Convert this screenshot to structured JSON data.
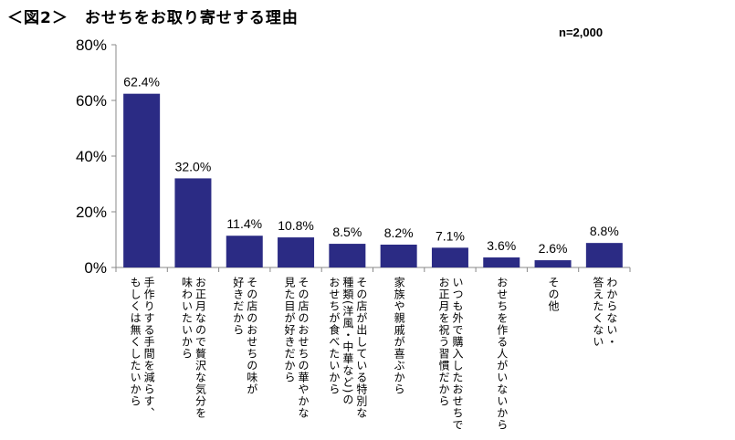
{
  "title": "＜図2＞　おせちをお取り寄せする理由",
  "sample_size": "n=2,000",
  "chart_data": {
    "type": "bar",
    "title": "おせちをお取り寄せする理由",
    "xlabel": "",
    "ylabel": "",
    "ylim": [
      0,
      80
    ],
    "yticks": [
      "0%",
      "20%",
      "40%",
      "60%",
      "80%"
    ],
    "ytick_values": [
      0,
      20,
      40,
      60,
      80
    ],
    "grid": false,
    "bar_color": "#2b2b84",
    "categories": [
      [
        "手作りする手間を減らす、",
        "もしくは無くしたいから"
      ],
      [
        "お正月なので贅沢な気分を",
        "味わいたいから"
      ],
      [
        "その店のおせちの味が",
        "好きだから"
      ],
      [
        "その店のおせちの華やかな",
        "見た目が好きだから"
      ],
      [
        "その店が出している特別な",
        "種類(洋風・中華など)の",
        "おせちが食べたいから"
      ],
      [
        "家族や親戚が喜ぶから"
      ],
      [
        "いつも外で購入したおせちで",
        "お正月を祝う習慣だから"
      ],
      [
        "おせちを作る人がいないから"
      ],
      [
        "その他"
      ],
      [
        "わからない・",
        "答えたくない"
      ]
    ],
    "values": [
      62.4,
      32.0,
      11.4,
      10.8,
      8.5,
      8.2,
      7.1,
      3.6,
      2.6,
      8.8
    ],
    "data_labels": [
      "62.4%",
      "32.0%",
      "11.4%",
      "10.8%",
      "8.5%",
      "8.2%",
      "7.1%",
      "3.6%",
      "2.6%",
      "8.8%"
    ]
  }
}
